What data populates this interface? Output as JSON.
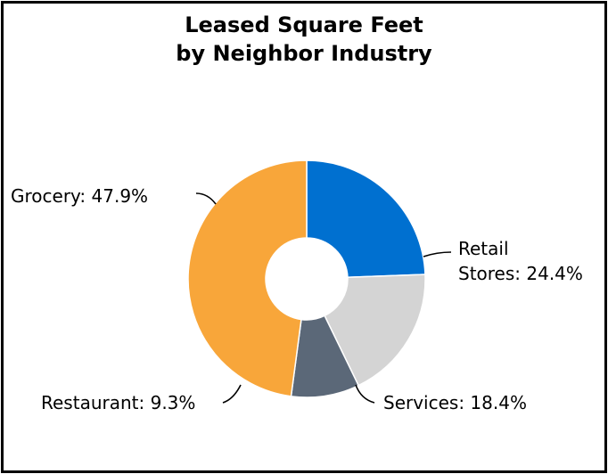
{
  "chart_data": {
    "type": "pie",
    "title_lines": [
      "Leased Square Feet",
      "by Neighbor Industry"
    ],
    "hole": "donut",
    "start": "top, clockwise",
    "slices": [
      {
        "name": "Retail Stores",
        "label_lines": [
          "Retail",
          "Stores: 24.4%"
        ],
        "value": 24.4,
        "color": "#0070d0"
      },
      {
        "name": "Services",
        "label_lines": [
          "Services: 18.4%"
        ],
        "value": 18.4,
        "color": "#d4d4d4"
      },
      {
        "name": "Restaurant",
        "label_lines": [
          "Restaurant: 9.3%"
        ],
        "value": 9.3,
        "color": "#5b6878"
      },
      {
        "name": "Grocery",
        "label_lines": [
          "Grocery: 47.9%"
        ],
        "value": 47.9,
        "color": "#f8a63a"
      }
    ]
  }
}
